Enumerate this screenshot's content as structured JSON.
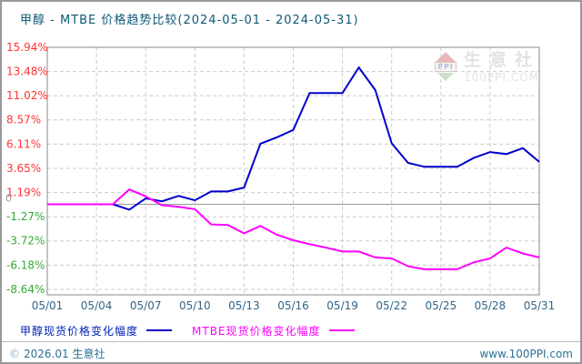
{
  "header": {
    "title": "甲醇 - MTBE 价格趋势比较(2024-05-01 - 2024-05-31)"
  },
  "watermark": {
    "logo_text": "PPI",
    "brand": "生意社",
    "site": "100PPI.COM"
  },
  "chart_data": {
    "type": "line",
    "title": "甲醇 - MTBE 价格趋势比较(2024-05-01 - 2024-05-31)",
    "x": [
      "05/01",
      "05/02",
      "05/03",
      "05/04",
      "05/05",
      "05/06",
      "05/07",
      "05/08",
      "05/09",
      "05/10",
      "05/11",
      "05/12",
      "05/13",
      "05/14",
      "05/15",
      "05/16",
      "05/17",
      "05/18",
      "05/19",
      "05/20",
      "05/21",
      "05/22",
      "05/23",
      "05/24",
      "05/25",
      "05/26",
      "05/27",
      "05/28",
      "05/29",
      "05/30",
      "05/31"
    ],
    "x_ticks": [
      "05/01",
      "05/04",
      "05/07",
      "05/10",
      "05/13",
      "05/16",
      "05/19",
      "05/22",
      "05/25",
      "05/28",
      "05/31"
    ],
    "x_label_color": "#336688",
    "ylim": [
      -9.2,
      15.94
    ],
    "grid": true,
    "legend_position": "bottom",
    "y_ticks": [
      {
        "label": "15.94%",
        "value": 15.94,
        "color": "#ff3333"
      },
      {
        "label": "13.48%",
        "value": 13.48,
        "color": "#ff3333"
      },
      {
        "label": "11.02%",
        "value": 11.02,
        "color": "#ff3333"
      },
      {
        "label": "8.57%",
        "value": 8.57,
        "color": "#ff3333"
      },
      {
        "label": "6.11%",
        "value": 6.11,
        "color": "#ff3333"
      },
      {
        "label": "3.65%",
        "value": 3.65,
        "color": "#ff3333"
      },
      {
        "label": "1.19%",
        "value": 1.19,
        "color": "#ff3333"
      },
      {
        "label": "-1.27%",
        "value": -1.27,
        "color": "#33aa33"
      },
      {
        "label": "-3.72%",
        "value": -3.72,
        "color": "#33aa33"
      },
      {
        "label": "-6.18%",
        "value": -6.18,
        "color": "#33aa33"
      },
      {
        "label": "-8.64%",
        "value": -8.64,
        "color": "#33aa33"
      }
    ],
    "zero_label": {
      "label": "0",
      "value": 0,
      "color": "#999999"
    },
    "series": [
      {
        "name": "甲醇现货价格变化幅度",
        "color": "#0000cc",
        "values": [
          0,
          0,
          0,
          0,
          0,
          -0.55,
          0.6,
          0.3,
          0.85,
          0.4,
          1.3,
          1.3,
          1.7,
          6.15,
          6.8,
          7.55,
          11.3,
          11.3,
          11.3,
          13.9,
          11.6,
          6.2,
          4.2,
          3.8,
          3.8,
          3.8,
          4.7,
          5.3,
          5.1,
          5.7,
          4.3
        ]
      },
      {
        "name": "MTBE现货价格变化幅度",
        "color": "#ff00ff",
        "values": [
          0,
          0,
          0,
          0,
          0,
          1.5,
          0.8,
          -0.1,
          -0.25,
          -0.5,
          -2.05,
          -2.1,
          -2.95,
          -2.2,
          -3.1,
          -3.65,
          -4.05,
          -4.4,
          -4.8,
          -4.8,
          -5.4,
          -5.5,
          -6.3,
          -6.6,
          -6.6,
          -6.6,
          -5.9,
          -5.5,
          -4.4,
          -5.0,
          -5.4
        ]
      }
    ]
  },
  "legend": {
    "items": [
      {
        "label": "甲醇现货价格变化幅度",
        "color": "#0000cc",
        "text_color": "#0022bb"
      },
      {
        "label": "MTBE现货价格变化幅度",
        "color": "#ff00ff",
        "text_color": "#ff00ff"
      }
    ]
  },
  "footer": {
    "copyright_symbol": "©",
    "copyright_text": "2026.01 生意社",
    "site": "www.100PPI.com"
  }
}
